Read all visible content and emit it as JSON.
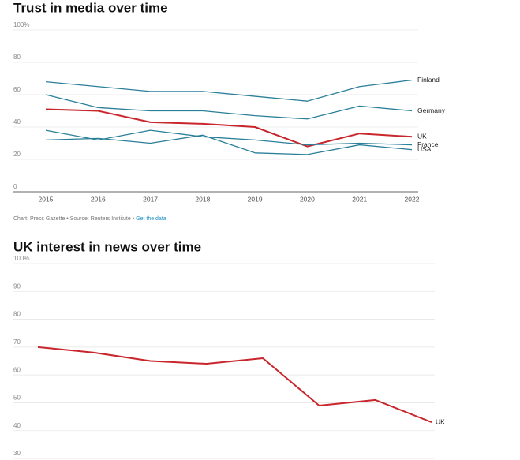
{
  "chart_data": [
    {
      "type": "line",
      "title": "Trust in media over time",
      "categories": [
        "2015",
        "2016",
        "2017",
        "2018",
        "2019",
        "2020",
        "2021",
        "2022"
      ],
      "ylim": [
        0,
        100
      ],
      "yticks": [
        0,
        20,
        40,
        60,
        80,
        {
          "value": 100,
          "label": "100%"
        }
      ],
      "grid": true,
      "series": [
        {
          "name": "Finland",
          "color": "#2a7f99",
          "values": [
            68,
            65,
            62,
            62,
            59,
            56,
            65,
            69
          ]
        },
        {
          "name": "Germany",
          "color": "#2a7f99",
          "values": [
            60,
            52,
            50,
            50,
            47,
            45,
            53,
            50
          ]
        },
        {
          "name": "UK",
          "color": "#c8252c",
          "values": [
            51,
            50,
            43,
            42,
            40,
            28,
            36,
            34
          ]
        },
        {
          "name": "France",
          "color": "#2a7f99",
          "values": [
            38,
            32,
            38,
            34,
            32,
            29,
            30,
            29
          ]
        },
        {
          "name": "USA",
          "color": "#2a7f99",
          "values": [
            32,
            33,
            30,
            35,
            24,
            23,
            29,
            26
          ]
        }
      ],
      "source": "Chart: Press Gazette • Source: Reuters Institute • ",
      "link": "Get the data"
    },
    {
      "type": "line",
      "title": "UK interest in news over time",
      "categories": [
        null,
        null,
        null,
        null,
        null,
        null,
        null,
        null
      ],
      "ylim": [
        30,
        100
      ],
      "yticks": [
        30,
        40,
        50,
        60,
        70,
        80,
        90,
        {
          "value": 100,
          "label": "100%"
        }
      ],
      "grid": true,
      "series": [
        {
          "name": "UK",
          "color": "#c8252c",
          "values": [
            70,
            68,
            65,
            64,
            66,
            49,
            51,
            43
          ]
        }
      ]
    }
  ]
}
